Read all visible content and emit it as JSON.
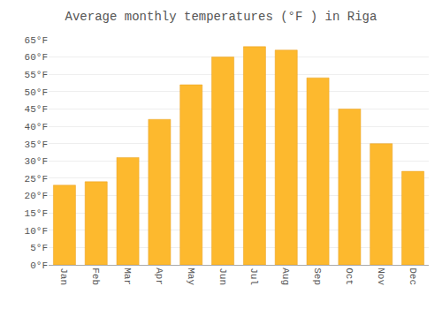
{
  "chart_data": {
    "type": "bar",
    "title": "Average monthly temperatures (°F ) in Riga",
    "categories": [
      "Jan",
      "Feb",
      "Mar",
      "Apr",
      "May",
      "Jun",
      "Jul",
      "Aug",
      "Sep",
      "Oct",
      "Nov",
      "Dec"
    ],
    "values": [
      23,
      24,
      31,
      42,
      52,
      60,
      63,
      62,
      54,
      45,
      35,
      27
    ],
    "color": "#FDB92E",
    "ylim": [
      0,
      65
    ],
    "yticks": [
      {
        "value": 0,
        "label": "0°F"
      },
      {
        "value": 5,
        "label": "5°F"
      },
      {
        "value": 10,
        "label": "10°F"
      },
      {
        "value": 15,
        "label": "15°F"
      },
      {
        "value": 20,
        "label": "20°F"
      },
      {
        "value": 25,
        "label": "25°F"
      },
      {
        "value": 30,
        "label": "30°F"
      },
      {
        "value": 35,
        "label": "35°F"
      },
      {
        "value": 40,
        "label": "40°F"
      },
      {
        "value": 45,
        "label": "45°F"
      },
      {
        "value": 50,
        "label": "50°F"
      },
      {
        "value": 55,
        "label": "55°F"
      },
      {
        "value": 60,
        "label": "60°F"
      },
      {
        "value": 65,
        "label": "65°F"
      }
    ],
    "grid": true
  }
}
